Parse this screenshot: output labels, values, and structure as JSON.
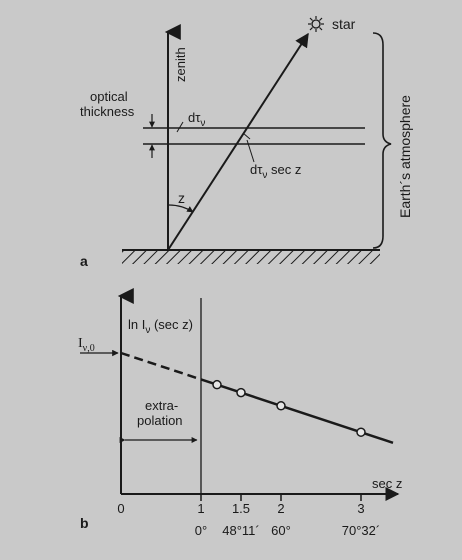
{
  "panel_a": {
    "label": "a",
    "zenith_label": "zenith",
    "star_label": "star",
    "optical_thickness_label": [
      "optical",
      "thickness"
    ],
    "dtau_label": "dτ",
    "dtau_sub": "ν",
    "dtau_secz_label": "dτ",
    "dtau_secz_sub": "ν",
    "dtau_secz_tail": " sec z",
    "angle_label": "z",
    "atmosphere_label": "Earth´s atmosphere"
  },
  "panel_b": {
    "label": "b",
    "y_label": "ln I",
    "y_label_sub": "ν",
    "y_label_tail": " (sec z)",
    "intercept_label": "I",
    "intercept_sub": "ν,0",
    "extrapolation_label": [
      "extra-",
      "polation"
    ],
    "x_label": "sec z",
    "x_tick_labels": [
      "0",
      "1",
      "1.5",
      "2",
      "3"
    ],
    "angle_tick_labels": [
      "0°",
      "48°11´",
      "60°",
      "70°32´"
    ]
  },
  "chart_data": {
    "type": "line",
    "xlabel": "sec z",
    "ylabel": "ln Iν (sec z)",
    "xlim": [
      0,
      3.5
    ],
    "x_ticks": [
      0,
      1,
      1.5,
      2,
      3
    ],
    "points_x": [
      1.2,
      1.5,
      2.0,
      3.0
    ],
    "line": {
      "intercept_at_x0": 1.0,
      "slope": -0.22,
      "x_end": 3.4
    },
    "extrapolated_segment": [
      0,
      1
    ]
  }
}
